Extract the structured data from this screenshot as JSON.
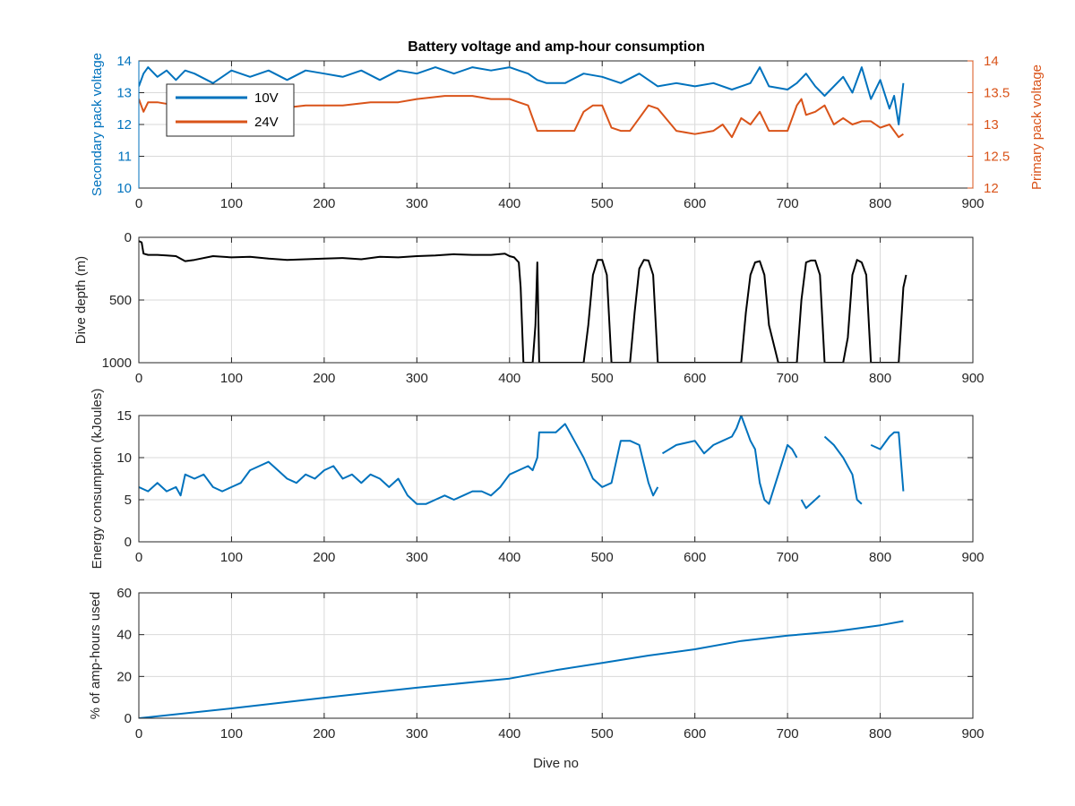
{
  "title": "Battery voltage and amp-hour consumption",
  "colors": {
    "blue": "#0072BD",
    "orange": "#D95319",
    "black": "#000000",
    "axis": "#262626",
    "grid": "#dcdcdc"
  },
  "chart_data": [
    {
      "id": "voltage",
      "type": "line",
      "title": "Battery voltage and amp-hour consumption",
      "xlabel": "",
      "ylabel": "Secondary pack voltage",
      "ylabel_right": "Primary pack voltage",
      "xlim": [
        0,
        900
      ],
      "ylim": [
        10,
        14
      ],
      "ylim_right": [
        12,
        14
      ],
      "xticks": [
        "0",
        "100",
        "200",
        "300",
        "400",
        "500",
        "600",
        "700",
        "800",
        "900"
      ],
      "yticks": [
        "10",
        "11",
        "12",
        "13",
        "14"
      ],
      "yticks_right": [
        "12",
        "12.5",
        "13",
        "13.5",
        "14"
      ],
      "grid": true,
      "legend": "top-left",
      "series": [
        {
          "name": "10V",
          "axis": "left",
          "color": "#0072BD",
          "x": [
            0,
            5,
            10,
            20,
            30,
            40,
            50,
            60,
            80,
            100,
            120,
            140,
            160,
            180,
            200,
            220,
            240,
            260,
            280,
            300,
            320,
            340,
            360,
            380,
            400,
            410,
            420,
            430,
            440,
            460,
            480,
            500,
            520,
            540,
            560,
            580,
            600,
            620,
            640,
            650,
            660,
            670,
            680,
            700,
            710,
            720,
            730,
            740,
            760,
            770,
            780,
            790,
            800,
            810,
            815,
            820,
            825
          ],
          "y": [
            13.2,
            13.6,
            13.8,
            13.5,
            13.7,
            13.4,
            13.7,
            13.6,
            13.3,
            13.7,
            13.5,
            13.7,
            13.4,
            13.7,
            13.6,
            13.5,
            13.7,
            13.4,
            13.7,
            13.6,
            13.8,
            13.6,
            13.8,
            13.7,
            13.8,
            13.7,
            13.6,
            13.4,
            13.3,
            13.3,
            13.6,
            13.5,
            13.3,
            13.6,
            13.2,
            13.3,
            13.2,
            13.3,
            13.1,
            13.2,
            13.3,
            13.8,
            13.2,
            13.1,
            13.3,
            13.6,
            13.2,
            12.9,
            13.5,
            13.0,
            13.8,
            12.8,
            13.4,
            12.5,
            12.9,
            12.0,
            13.3
          ]
        },
        {
          "name": "24V",
          "axis": "right",
          "color": "#D95319",
          "x": [
            0,
            5,
            10,
            20,
            40,
            60,
            80,
            100,
            120,
            150,
            180,
            200,
            220,
            250,
            280,
            300,
            330,
            360,
            380,
            400,
            410,
            420,
            425,
            430,
            440,
            460,
            470,
            480,
            490,
            500,
            510,
            520,
            530,
            540,
            550,
            560,
            580,
            600,
            620,
            630,
            640,
            650,
            660,
            670,
            680,
            690,
            700,
            710,
            715,
            720,
            730,
            740,
            750,
            760,
            770,
            780,
            790,
            800,
            810,
            820,
            825
          ],
          "y": [
            13.4,
            13.2,
            13.35,
            13.35,
            13.3,
            13.3,
            13.25,
            13.3,
            13.3,
            13.25,
            13.3,
            13.3,
            13.3,
            13.35,
            13.35,
            13.4,
            13.45,
            13.45,
            13.4,
            13.4,
            13.35,
            13.3,
            13.1,
            12.9,
            12.9,
            12.9,
            12.9,
            13.2,
            13.3,
            13.3,
            12.95,
            12.9,
            12.9,
            13.1,
            13.3,
            13.25,
            12.9,
            12.85,
            12.9,
            13.0,
            12.8,
            13.1,
            13.0,
            13.2,
            12.9,
            12.9,
            12.9,
            13.3,
            13.4,
            13.15,
            13.2,
            13.3,
            13.0,
            13.1,
            13.0,
            13.05,
            13.05,
            12.95,
            13.0,
            12.8,
            12.85
          ]
        }
      ]
    },
    {
      "id": "depth",
      "type": "line",
      "xlabel": "",
      "ylabel": "Dive depth (m)",
      "xlim": [
        0,
        900
      ],
      "ylim": [
        0,
        1000
      ],
      "y_reversed": true,
      "xticks": [
        "0",
        "100",
        "200",
        "300",
        "400",
        "500",
        "600",
        "700",
        "800",
        "900"
      ],
      "yticks": [
        "0",
        "500",
        "1000"
      ],
      "grid": true,
      "series": [
        {
          "name": "",
          "color": "#000000",
          "x": [
            0,
            3,
            5,
            10,
            20,
            30,
            40,
            50,
            60,
            80,
            100,
            120,
            140,
            160,
            180,
            200,
            220,
            240,
            260,
            280,
            300,
            320,
            340,
            360,
            380,
            395,
            400,
            405,
            410,
            412,
            415,
            420,
            425,
            428,
            430,
            432,
            434,
            436,
            440,
            460,
            480,
            485,
            490,
            495,
            500,
            505,
            510,
            520,
            530,
            535,
            540,
            545,
            550,
            555,
            560,
            570,
            580,
            600,
            620,
            640,
            650,
            655,
            660,
            665,
            670,
            675,
            680,
            690,
            700,
            710,
            715,
            720,
            725,
            730,
            735,
            740,
            760,
            765,
            770,
            775,
            780,
            785,
            790,
            800,
            810,
            820,
            825,
            828
          ],
          "y": [
            30,
            40,
            130,
            140,
            140,
            145,
            150,
            190,
            180,
            150,
            160,
            155,
            170,
            180,
            175,
            170,
            165,
            175,
            155,
            160,
            150,
            145,
            135,
            140,
            140,
            130,
            150,
            160,
            200,
            400,
            1000,
            1000,
            1000,
            700,
            200,
            1000,
            1000,
            1000,
            1000,
            1000,
            1000,
            700,
            300,
            180,
            180,
            300,
            1000,
            1000,
            1000,
            600,
            250,
            180,
            185,
            300,
            1000,
            1000,
            1000,
            1000,
            1000,
            1000,
            1000,
            600,
            300,
            200,
            190,
            300,
            700,
            1000,
            1000,
            1000,
            500,
            200,
            185,
            185,
            300,
            1000,
            1000,
            800,
            300,
            180,
            200,
            300,
            1000,
            1000,
            1000,
            1000,
            400,
            300
          ]
        }
      ]
    },
    {
      "id": "energy",
      "type": "line",
      "xlabel": "",
      "ylabel": "Energy consumption (kJoules)",
      "xlim": [
        0,
        900
      ],
      "ylim": [
        0,
        15
      ],
      "xticks": [
        "0",
        "100",
        "200",
        "300",
        "400",
        "500",
        "600",
        "700",
        "800",
        "900"
      ],
      "yticks": [
        "0",
        "5",
        "10",
        "15"
      ],
      "grid": true,
      "series": [
        {
          "name": "",
          "color": "#0072BD",
          "x": [
            0,
            10,
            20,
            30,
            40,
            45,
            50,
            60,
            70,
            80,
            90,
            100,
            110,
            120,
            130,
            140,
            150,
            160,
            170,
            180,
            190,
            200,
            210,
            220,
            230,
            240,
            250,
            260,
            270,
            280,
            290,
            300,
            310,
            320,
            330,
            340,
            350,
            360,
            370,
            380,
            390,
            400,
            410,
            420,
            425,
            430,
            432,
            440,
            450,
            460,
            470,
            480,
            490,
            500,
            510,
            520,
            530,
            540,
            550,
            555,
            560,
            null,
            565,
            580,
            600,
            610,
            620,
            630,
            640,
            645,
            650,
            660,
            665,
            670,
            675,
            680,
            690,
            700,
            705,
            710,
            null,
            715,
            720,
            730,
            735,
            null,
            740,
            750,
            760,
            770,
            775,
            780,
            null,
            790,
            800,
            810,
            815,
            820,
            825
          ],
          "y": [
            6.5,
            6.0,
            7.0,
            6.0,
            6.5,
            5.5,
            8.0,
            7.5,
            8.0,
            6.5,
            6.0,
            6.5,
            7.0,
            8.5,
            9.0,
            9.5,
            8.5,
            7.5,
            7.0,
            8.0,
            7.5,
            8.5,
            9.0,
            7.5,
            8.0,
            7.0,
            8.0,
            7.5,
            6.5,
            7.5,
            5.5,
            4.5,
            4.5,
            5.0,
            5.5,
            5.0,
            5.5,
            6.0,
            6.0,
            5.5,
            6.5,
            8.0,
            8.5,
            9.0,
            8.5,
            10.0,
            13.0,
            13.0,
            13.0,
            14.0,
            12.0,
            10.0,
            7.5,
            6.5,
            7.0,
            12.0,
            12.0,
            11.5,
            7.0,
            5.5,
            6.5,
            null,
            10.5,
            11.5,
            12.0,
            10.5,
            11.5,
            12.0,
            12.5,
            13.5,
            15.0,
            12.0,
            11.0,
            7.0,
            5.0,
            4.5,
            8.0,
            11.5,
            11.0,
            10.0,
            null,
            5.0,
            4.0,
            5.0,
            5.5,
            null,
            12.5,
            11.5,
            10.0,
            8.0,
            5.0,
            4.5,
            null,
            11.5,
            11.0,
            12.5,
            13.0,
            13.0,
            6.0
          ]
        }
      ]
    },
    {
      "id": "amphours",
      "type": "line",
      "xlabel": "Dive no",
      "ylabel": "% of amp-hours used",
      "xlim": [
        0,
        900
      ],
      "ylim": [
        0,
        60
      ],
      "xticks": [
        "0",
        "100",
        "200",
        "300",
        "400",
        "500",
        "600",
        "700",
        "800",
        "900"
      ],
      "yticks": [
        "0",
        "20",
        "40",
        "60"
      ],
      "grid": true,
      "series": [
        {
          "name": "",
          "color": "#0072BD",
          "x": [
            0,
            100,
            200,
            300,
            400,
            450,
            500,
            550,
            600,
            650,
            700,
            750,
            800,
            825
          ],
          "y": [
            0,
            4.7,
            9.8,
            14.6,
            19.0,
            23.0,
            26.5,
            30.0,
            33.0,
            37.0,
            39.5,
            41.5,
            44.5,
            46.5
          ]
        }
      ]
    }
  ]
}
